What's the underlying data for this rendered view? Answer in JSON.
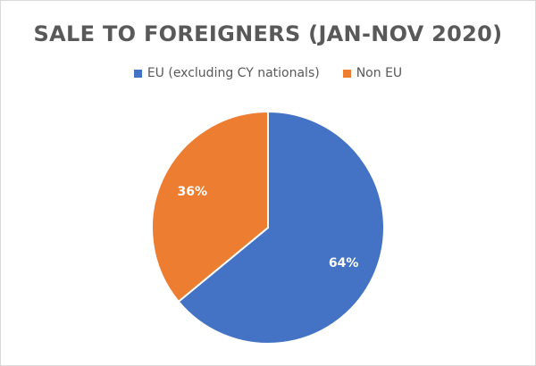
{
  "chart_data": {
    "type": "pie",
    "title": "SALE TO FOREIGNERS (JAN-NOV 2020)",
    "categories": [
      "EU (excluding CY nationals)",
      "Non EU"
    ],
    "values": [
      64,
      36
    ],
    "data_labels": [
      "64%",
      "36%"
    ],
    "colors": [
      "#4472c4",
      "#ed7d31"
    ],
    "legend_position": "top"
  }
}
